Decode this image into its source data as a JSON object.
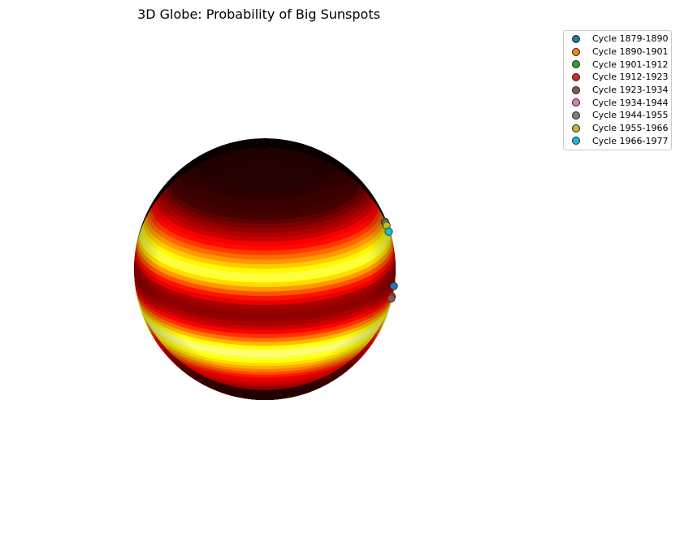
{
  "chart_data": {
    "type": "scatter",
    "subtype": "3d-globe-heatmap",
    "title": "3D Globe: Probability of Big Sunspots",
    "colormap": "hot",
    "axes_visible": false,
    "legend": {
      "placement": "top-right",
      "entries": [
        {
          "label": "Cycle 1879-1890",
          "color": "#1f77b4"
        },
        {
          "label": "Cycle 1890-1901",
          "color": "#ff7f0e"
        },
        {
          "label": "Cycle 1901-1912",
          "color": "#2ca02c"
        },
        {
          "label": "Cycle 1912-1923",
          "color": "#d62728"
        },
        {
          "label": "Cycle 1923-1934",
          "color": "#8c564b"
        },
        {
          "label": "Cycle 1934-1944",
          "color": "#e377c2"
        },
        {
          "label": "Cycle 1944-1955",
          "color": "#7f7f7f"
        },
        {
          "label": "Cycle 1955-1966",
          "color": "#bcbd22"
        },
        {
          "label": "Cycle 1966-1977",
          "color": "#17becf"
        }
      ]
    },
    "latitude_probability_bands": [
      {
        "lat": 90,
        "p": 0.0
      },
      {
        "lat": 60,
        "p": 0.0
      },
      {
        "lat": 45,
        "p": 0.05
      },
      {
        "lat": 35,
        "p": 0.25
      },
      {
        "lat": 25,
        "p": 0.6
      },
      {
        "lat": 18,
        "p": 0.85
      },
      {
        "lat": 12,
        "p": 0.55
      },
      {
        "lat": 5,
        "p": 0.2
      },
      {
        "lat": 0,
        "p": 0.15
      },
      {
        "lat": -5,
        "p": 0.25
      },
      {
        "lat": -12,
        "p": 0.6
      },
      {
        "lat": -18,
        "p": 0.9
      },
      {
        "lat": -25,
        "p": 0.7
      },
      {
        "lat": -35,
        "p": 0.35
      },
      {
        "lat": -50,
        "p": 0.1
      },
      {
        "lat": -70,
        "p": 0.02
      },
      {
        "lat": -90,
        "p": 0.0
      }
    ],
    "sunspot_markers": [
      {
        "series": "Cycle 1923-1934",
        "lat": 23
      },
      {
        "series": "Cycle 1944-1955",
        "lat": 22
      },
      {
        "series": "Cycle 1955-1966",
        "lat": 21
      },
      {
        "series": "Cycle 1966-1977",
        "lat": 18
      },
      {
        "series": "Cycle 1879-1890",
        "lat": -8
      },
      {
        "series": "Cycle 1912-1923",
        "lat": -13
      },
      {
        "series": "Cycle 1923-1934",
        "lat": -14
      }
    ]
  }
}
